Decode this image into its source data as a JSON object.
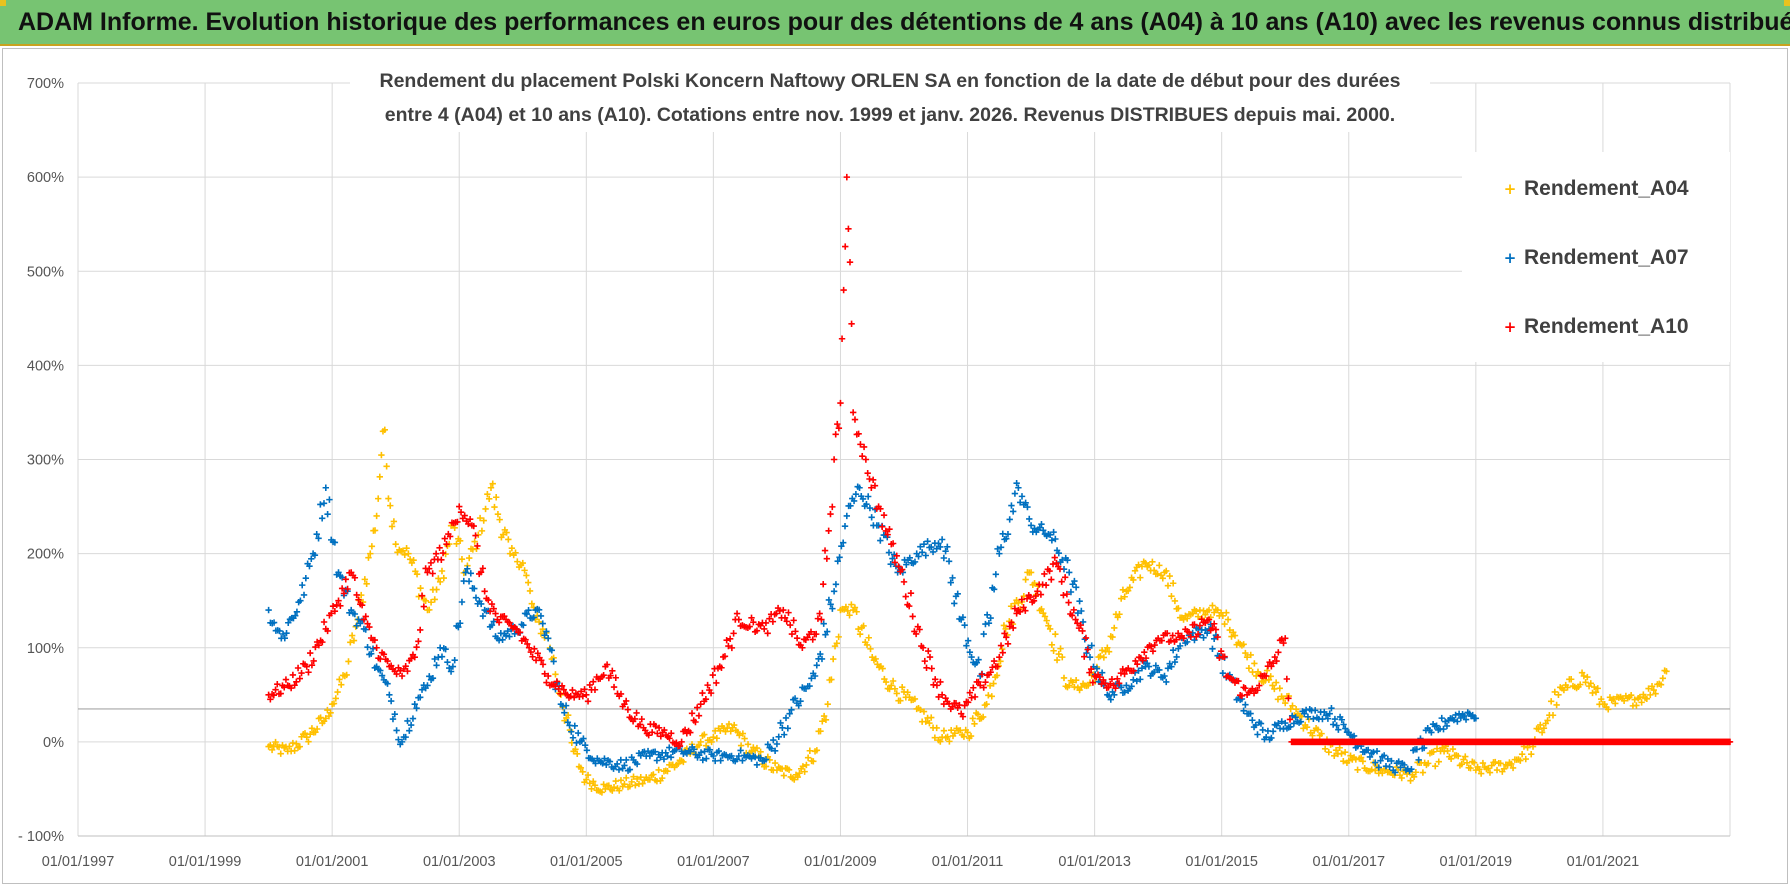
{
  "header": {
    "title": "ADAM Informe. Evolution historique des performances en euros pour des détentions de 4 ans (A04) à 10 ans (A10) avec les revenus connus distribués"
  },
  "chart_data": {
    "type": "scatter",
    "title_line1": "Rendement du placement Polski Koncern Naftowy ORLEN SA en fonction de la date de début pour des durées",
    "title_line2": "entre 4 (A04) et 10 ans (A10).  Cotations entre nov. 1999 et janv. 2026. Revenus DISTRIBUES depuis mai. 2000.",
    "xlabel": "",
    "ylabel": "",
    "x_range": [
      "1997-01-01",
      "2023-01-01"
    ],
    "ylim": [
      -100,
      700
    ],
    "y_ticks": [
      -100,
      0,
      100,
      200,
      300,
      400,
      500,
      600,
      700
    ],
    "y_tick_labels": [
      "- 100%",
      "0%",
      "100%",
      "200%",
      "300%",
      "400%",
      "500%",
      "600%",
      "700%"
    ],
    "x_tick_labels": [
      "01/01/1997",
      "01/01/1999",
      "01/01/2001",
      "01/01/2003",
      "01/01/2005",
      "01/01/2007",
      "01/01/2009",
      "01/01/2011",
      "01/01/2013",
      "01/01/2015",
      "01/01/2017",
      "01/01/2019",
      "01/01/2021"
    ],
    "grid": true,
    "legend_position": "top-right",
    "marker": "+",
    "series": [
      {
        "name": "Rendement_A04",
        "color": "#ffc000",
        "points": [
          [
            "2000.0",
            -5
          ],
          [
            "2000.3",
            -10
          ],
          [
            "2000.6",
            5
          ],
          [
            "2000.9",
            25
          ],
          [
            "2001.0",
            40
          ],
          [
            "2001.2",
            70
          ],
          [
            "2001.4",
            130
          ],
          [
            "2001.6",
            200
          ],
          [
            "2001.7",
            240
          ],
          [
            "2001.8",
            330
          ],
          [
            "2002.0",
            210
          ],
          [
            "2002.2",
            200
          ],
          [
            "2002.5",
            140
          ],
          [
            "2002.7",
            170
          ],
          [
            "2002.9",
            230
          ],
          [
            "2003.1",
            180
          ],
          [
            "2003.3",
            220
          ],
          [
            "2003.5",
            270
          ],
          [
            "2003.8",
            200
          ],
          [
            "2004.0",
            190
          ],
          [
            "2004.2",
            130
          ],
          [
            "2004.4",
            110
          ],
          [
            "2004.6",
            50
          ],
          [
            "2004.8",
            -10
          ],
          [
            "2005.0",
            -40
          ],
          [
            "2005.3",
            -50
          ],
          [
            "2005.6",
            -45
          ],
          [
            "2006.0",
            -40
          ],
          [
            "2006.5",
            -20
          ],
          [
            "2006.8",
            0
          ],
          [
            "2007.0",
            5
          ],
          [
            "2007.3",
            15
          ],
          [
            "2007.6",
            -10
          ],
          [
            "2008.0",
            -30
          ],
          [
            "2008.3",
            -35
          ],
          [
            "2008.6",
            -10
          ],
          [
            "2008.8",
            40
          ],
          [
            "2009.0",
            140
          ],
          [
            "2009.2",
            140
          ],
          [
            "2009.5",
            90
          ],
          [
            "2009.8",
            60
          ],
          [
            "2010.2",
            35
          ],
          [
            "2010.6",
            5
          ],
          [
            "2011.0",
            10
          ],
          [
            "2011.3",
            40
          ],
          [
            "2011.6",
            120
          ],
          [
            "2012.0",
            180
          ],
          [
            "2012.3",
            120
          ],
          [
            "2012.6",
            60
          ],
          [
            "2012.9",
            60
          ],
          [
            "2013.2",
            100
          ],
          [
            "2013.5",
            160
          ],
          [
            "2013.8",
            190
          ],
          [
            "2014.1",
            180
          ],
          [
            "2014.4",
            130
          ],
          [
            "2014.8",
            140
          ],
          [
            "2015.1",
            130
          ],
          [
            "2015.4",
            90
          ],
          [
            "2015.8",
            60
          ],
          [
            "2016.2",
            30
          ],
          [
            "2016.6",
            0
          ],
          [
            "2017.0",
            -20
          ],
          [
            "2017.5",
            -30
          ],
          [
            "2018.0",
            -35
          ],
          [
            "2018.5",
            -10
          ],
          [
            "2019.0",
            -30
          ],
          [
            "2019.5",
            -25
          ],
          [
            "2019.9",
            -5
          ],
          [
            "2020.3",
            50
          ],
          [
            "2020.7",
            70
          ],
          [
            "2021.0",
            40
          ],
          [
            "2021.5",
            45
          ],
          [
            "2021.8",
            55
          ],
          [
            "2022.0",
            75
          ]
        ]
      },
      {
        "name": "Rendement_A07",
        "color": "#0070c0",
        "points": [
          [
            "2000.0",
            140
          ],
          [
            "2000.2",
            110
          ],
          [
            "2000.5",
            150
          ],
          [
            "2000.7",
            200
          ],
          [
            "2000.9",
            270
          ],
          [
            "2001.1",
            180
          ],
          [
            "2001.3",
            140
          ],
          [
            "2001.5",
            120
          ],
          [
            "2001.7",
            80
          ],
          [
            "2001.9",
            50
          ],
          [
            "2002.1",
            0
          ],
          [
            "2002.3",
            40
          ],
          [
            "2002.5",
            60
          ],
          [
            "2002.7",
            100
          ],
          [
            "2002.9",
            80
          ],
          [
            "2003.1",
            180
          ],
          [
            "2003.4",
            140
          ],
          [
            "2003.6",
            110
          ],
          [
            "2003.9",
            120
          ],
          [
            "2004.2",
            140
          ],
          [
            "2004.4",
            110
          ],
          [
            "2004.6",
            40
          ],
          [
            "2004.9",
            0
          ],
          [
            "2005.2",
            -20
          ],
          [
            "2005.6",
            -25
          ],
          [
            "2006.0",
            -15
          ],
          [
            "2006.5",
            -10
          ],
          [
            "2007.0",
            -15
          ],
          [
            "2007.4",
            -15
          ],
          [
            "2007.8",
            -20
          ],
          [
            "2008.2",
            30
          ],
          [
            "2008.6",
            70
          ],
          [
            "2008.9",
            160
          ],
          [
            "2009.1",
            240
          ],
          [
            "2009.3",
            270
          ],
          [
            "2009.6",
            230
          ],
          [
            "2009.9",
            180
          ],
          [
            "2010.2",
            200
          ],
          [
            "2010.6",
            215
          ],
          [
            "2010.9",
            130
          ],
          [
            "2011.2",
            70
          ],
          [
            "2011.5",
            200
          ],
          [
            "2011.8",
            270
          ],
          [
            "2012.0",
            230
          ],
          [
            "2012.3",
            220
          ],
          [
            "2012.6",
            180
          ],
          [
            "2012.9",
            100
          ],
          [
            "2013.2",
            50
          ],
          [
            "2013.5",
            60
          ],
          [
            "2013.8",
            80
          ],
          [
            "2014.1",
            70
          ],
          [
            "2014.4",
            110
          ],
          [
            "2014.8",
            120
          ],
          [
            "2015.1",
            70
          ],
          [
            "2015.4",
            30
          ],
          [
            "2015.7",
            5
          ],
          [
            "2016.0",
            20
          ],
          [
            "2016.3",
            30
          ],
          [
            "2016.7",
            30
          ],
          [
            "2017.0",
            10
          ],
          [
            "2017.5",
            -20
          ],
          [
            "2017.9",
            -30
          ],
          [
            "2018.3",
            10
          ],
          [
            "2018.6",
            25
          ],
          [
            "2018.9",
            30
          ],
          [
            "2019.0",
            25
          ]
        ]
      },
      {
        "name": "Rendement_A10",
        "color": "#ff0000",
        "points": [
          [
            "2000.0",
            50
          ],
          [
            "2000.3",
            60
          ],
          [
            "2000.6",
            80
          ],
          [
            "2000.9",
            120
          ],
          [
            "2001.1",
            150
          ],
          [
            "2001.3",
            180
          ],
          [
            "2001.5",
            130
          ],
          [
            "2001.7",
            100
          ],
          [
            "2001.9",
            80
          ],
          [
            "2002.1",
            70
          ],
          [
            "2002.3",
            90
          ],
          [
            "2002.5",
            180
          ],
          [
            "2002.8",
            210
          ],
          [
            "2003.0",
            250
          ],
          [
            "2003.2",
            230
          ],
          [
            "2003.4",
            160
          ],
          [
            "2003.6",
            130
          ],
          [
            "2003.9",
            120
          ],
          [
            "2004.1",
            100
          ],
          [
            "2004.4",
            70
          ],
          [
            "2004.7",
            50
          ],
          [
            "2005.0",
            50
          ],
          [
            "2005.3",
            80
          ],
          [
            "2005.6",
            40
          ],
          [
            "2005.9",
            15
          ],
          [
            "2006.2",
            10
          ],
          [
            "2006.5",
            0
          ],
          [
            "2006.8",
            40
          ],
          [
            "2007.1",
            80
          ],
          [
            "2007.4",
            130
          ],
          [
            "2007.8",
            120
          ],
          [
            "2008.1",
            140
          ],
          [
            "2008.4",
            100
          ],
          [
            "2008.7",
            130
          ],
          [
            "2008.9",
            300
          ],
          [
            "2009.0",
            360
          ],
          [
            "2009.05",
            480
          ],
          [
            "2009.1",
            600
          ],
          [
            "2009.2",
            350
          ],
          [
            "2009.4",
            300
          ],
          [
            "2009.6",
            250
          ],
          [
            "2009.8",
            210
          ],
          [
            "2010.0",
            170
          ],
          [
            "2010.3",
            100
          ],
          [
            "2010.6",
            50
          ],
          [
            "2010.9",
            30
          ],
          [
            "2011.2",
            60
          ],
          [
            "2011.5",
            90
          ],
          [
            "2011.8",
            140
          ],
          [
            "2012.1",
            160
          ],
          [
            "2012.4",
            190
          ],
          [
            "2012.7",
            130
          ],
          [
            "2013.0",
            70
          ],
          [
            "2013.3",
            60
          ],
          [
            "2013.7",
            90
          ],
          [
            "2014.0",
            110
          ],
          [
            "2014.4",
            110
          ],
          [
            "2014.8",
            130
          ],
          [
            "2015.1",
            70
          ],
          [
            "2015.4",
            50
          ],
          [
            "2015.7",
            70
          ],
          [
            "2016.0",
            110
          ],
          [
            "2016.1",
            0
          ],
          [
            "2017.0",
            0
          ],
          [
            "2018.0",
            0
          ],
          [
            "2019.0",
            0
          ],
          [
            "2020.0",
            0
          ],
          [
            "2021.0",
            0
          ],
          [
            "2022.0",
            0
          ],
          [
            "2023.0",
            0
          ]
        ]
      }
    ]
  }
}
